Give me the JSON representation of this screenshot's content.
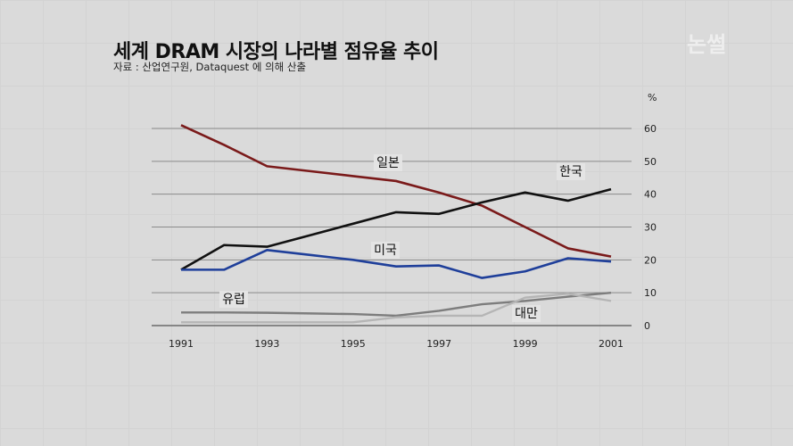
{
  "title": "세계 DRAM 시장의 나라별 점유율 추이",
  "subtitle": "자료 : 산업연구원, Dataquest 에 의해 산출",
  "logo": "논썰",
  "chart_data": {
    "type": "line",
    "title": "세계 DRAM 시장의 나라별 점유율 추이",
    "y_unit": "%",
    "ylim": [
      0,
      60
    ],
    "yticks": [
      "0",
      "10",
      "20",
      "30",
      "40",
      "50",
      "60"
    ],
    "xticks": [
      "1991",
      "1993",
      "1995",
      "1997",
      "1999",
      "2001"
    ],
    "grid": true,
    "x": [
      1991,
      1992,
      1993,
      1994,
      1995,
      1996,
      1997,
      1998,
      1999,
      2000,
      2001
    ],
    "series": [
      {
        "name": "일본",
        "color": "#7a1a1a",
        "values": [
          61,
          55,
          48.5,
          47,
          45.5,
          44,
          40.5,
          36.5,
          30,
          23.5,
          21
        ]
      },
      {
        "name": "한국",
        "color": "#111111",
        "values": [
          17,
          24.5,
          24,
          27.5,
          31,
          34.5,
          34,
          37.5,
          40.5,
          38,
          41.5
        ]
      },
      {
        "name": "미국",
        "color": "#1f3f9a",
        "values": [
          17,
          17,
          23,
          21.5,
          20,
          18,
          18.3,
          14.5,
          16.5,
          20.5,
          19.5
        ]
      },
      {
        "name": "유럽",
        "color": "#7d7d7d",
        "values": [
          4,
          4,
          3.9,
          3.7,
          3.5,
          3,
          4.5,
          6.5,
          7.5,
          8.8,
          10
        ]
      },
      {
        "name": "대만",
        "color": "#b5b5b5",
        "values": [
          1,
          1,
          1,
          1,
          1,
          2.5,
          3,
          3,
          8.5,
          9.7,
          7.5
        ]
      }
    ]
  }
}
